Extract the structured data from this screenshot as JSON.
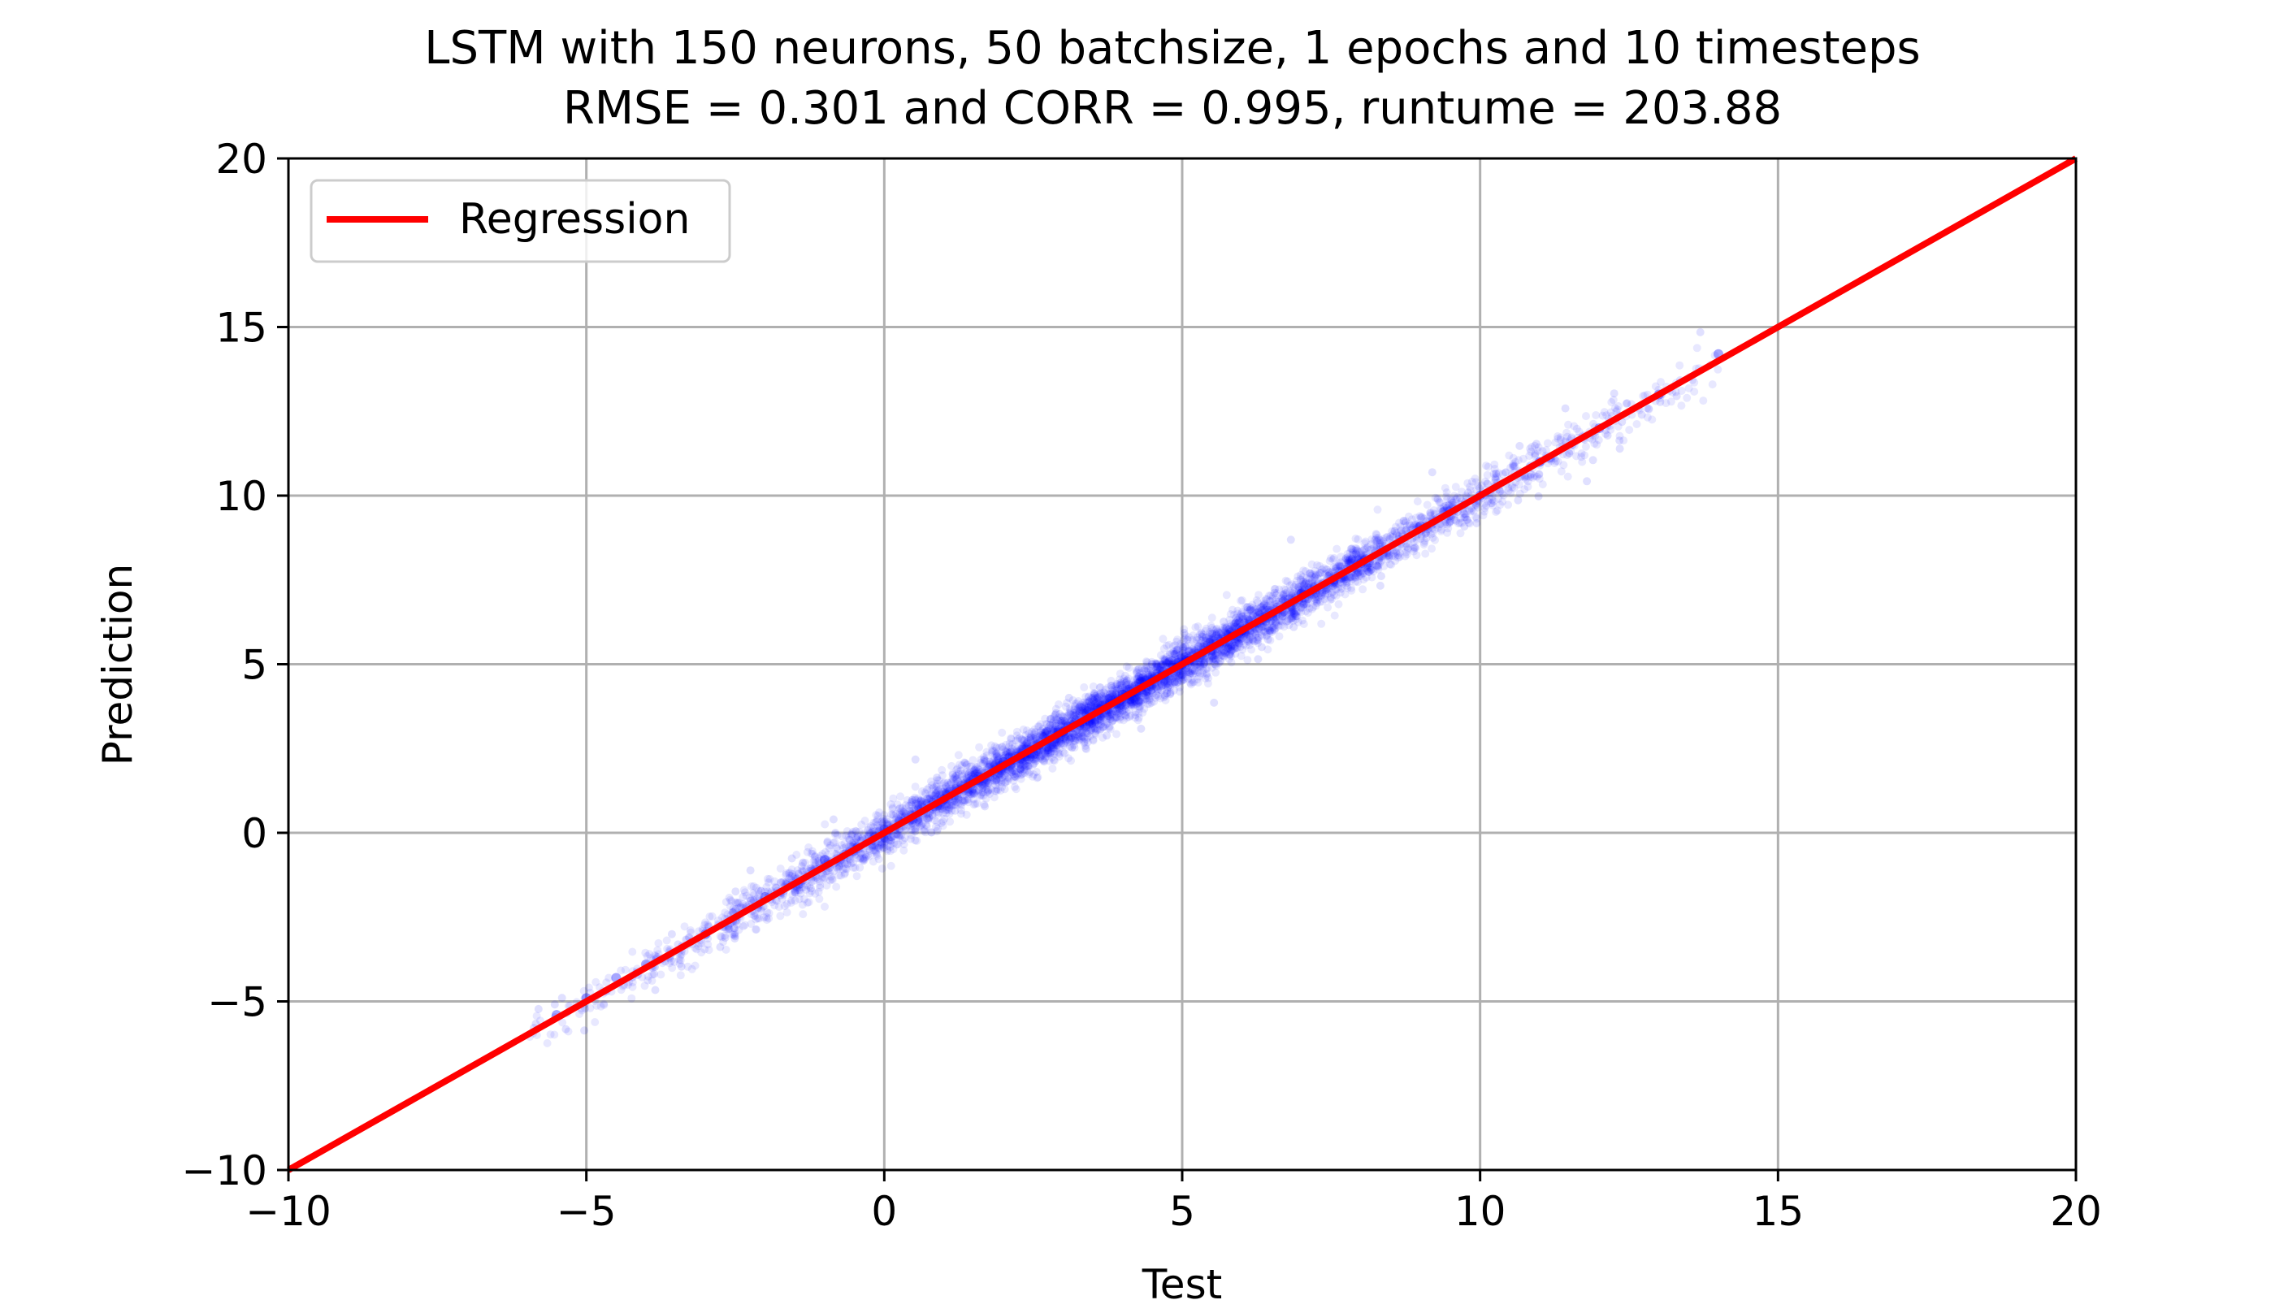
{
  "chart_data": {
    "type": "scatter",
    "title_line1": "LSTM with 150 neurons, 50 batchsize, 1 epochs and 10 timesteps",
    "title_line2": "RMSE = 0.301 and CORR = 0.995, runtume = 203.88",
    "xlabel": "Test",
    "ylabel": "Prediction",
    "xlim": [
      -10,
      20
    ],
    "ylim": [
      -10,
      20
    ],
    "xticks": [
      -10,
      -5,
      0,
      5,
      10,
      15,
      20
    ],
    "yticks": [
      -10,
      -5,
      0,
      5,
      10,
      15,
      20
    ],
    "xtick_labels": [
      "−10",
      "−5",
      "0",
      "5",
      "10",
      "15",
      "20"
    ],
    "ytick_labels": [
      "−10",
      "−5",
      "0",
      "5",
      "10",
      "15",
      "20"
    ],
    "grid": true,
    "legend": {
      "position": "top-left",
      "entries": [
        {
          "label": "Regression",
          "color": "#ff0000",
          "style": "line"
        }
      ]
    },
    "regression_line": {
      "x": [
        -10,
        20
      ],
      "y": [
        -10,
        20
      ],
      "color": "#ff0000"
    },
    "scatter": {
      "color": "#0000ff",
      "approx_x_range": [
        -6,
        14
      ],
      "relationship": "y ≈ x",
      "approx_residual_sd": 0.3,
      "sample_points": [
        {
          "x": -5.5,
          "y": -5.4
        },
        {
          "x": -5.0,
          "y": -4.9
        },
        {
          "x": -4.5,
          "y": -4.3
        },
        {
          "x": -4.0,
          "y": -3.9
        },
        {
          "x": -3.0,
          "y": -3.0
        },
        {
          "x": -2.0,
          "y": -1.9
        },
        {
          "x": -1.0,
          "y": -0.8
        },
        {
          "x": 0.0,
          "y": 0.1
        },
        {
          "x": 1.0,
          "y": 1.0
        },
        {
          "x": 2.0,
          "y": 2.1
        },
        {
          "x": 3.0,
          "y": 3.0
        },
        {
          "x": 4.0,
          "y": 4.1
        },
        {
          "x": 5.0,
          "y": 5.0
        },
        {
          "x": 6.0,
          "y": 6.0
        },
        {
          "x": 7.0,
          "y": 7.1
        },
        {
          "x": 8.0,
          "y": 8.0
        },
        {
          "x": 9.0,
          "y": 9.1
        },
        {
          "x": 10.0,
          "y": 10.0
        },
        {
          "x": 11.0,
          "y": 11.0
        },
        {
          "x": 12.0,
          "y": 12.0
        },
        {
          "x": 13.0,
          "y": 13.0
        },
        {
          "x": 14.0,
          "y": 14.2
        }
      ]
    }
  }
}
